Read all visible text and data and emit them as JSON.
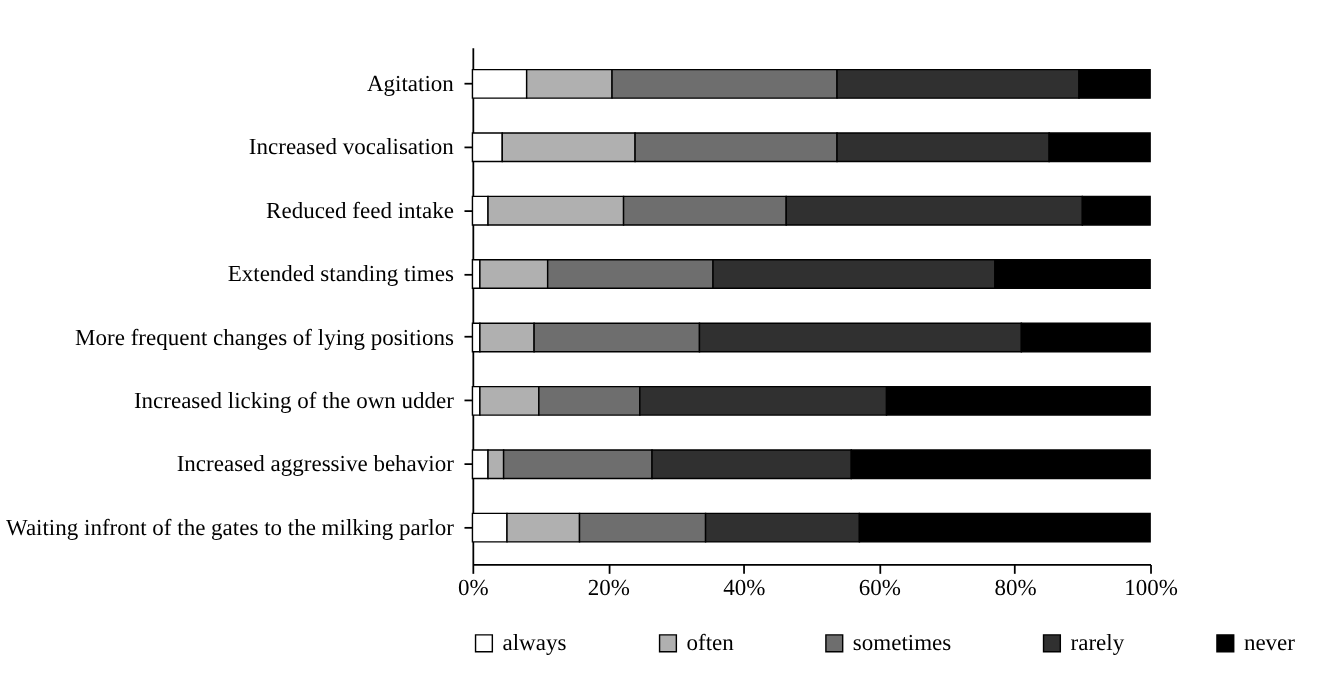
{
  "chart_data": {
    "type": "bar",
    "orientation": "horizontal",
    "stacked": true,
    "categories": [
      "Agitation",
      "Increased vocalisation",
      "Reduced feed intake",
      "Extended standing times",
      "More frequent changes of lying positions",
      "Increased licking of the own udder",
      "Increased aggressive behavior",
      "Waiting infront of the gates to the milking parlor"
    ],
    "series": [
      {
        "name": "always",
        "color": "#ffffff",
        "values": [
          8.0,
          4.4,
          2.3,
          1.1,
          1.1,
          1.1,
          2.3,
          5.1
        ]
      },
      {
        "name": "often",
        "color": "#b0b0b0",
        "values": [
          12.6,
          19.6,
          20.0,
          10.0,
          8.0,
          8.7,
          2.3,
          10.7
        ]
      },
      {
        "name": "sometimes",
        "color": "#6e6e6e",
        "values": [
          33.2,
          29.8,
          24.0,
          24.4,
          24.4,
          14.9,
          21.9,
          18.6
        ]
      },
      {
        "name": "rarely",
        "color": "#303030",
        "values": [
          35.7,
          31.3,
          43.7,
          41.6,
          47.5,
          36.4,
          29.4,
          22.7
        ]
      },
      {
        "name": "never",
        "color": "#000000",
        "values": [
          10.5,
          14.9,
          10.0,
          22.9,
          19.0,
          38.9,
          44.1,
          42.9
        ]
      }
    ],
    "xlim": [
      0,
      100
    ],
    "xticks": [
      {
        "value": 0,
        "label": "0%"
      },
      {
        "value": 20,
        "label": "20%"
      },
      {
        "value": 40,
        "label": "40%"
      },
      {
        "value": 60,
        "label": "60%"
      },
      {
        "value": 80,
        "label": "80%"
      },
      {
        "value": 100,
        "label": "100%"
      }
    ],
    "grid": false,
    "legend": "bottom"
  }
}
